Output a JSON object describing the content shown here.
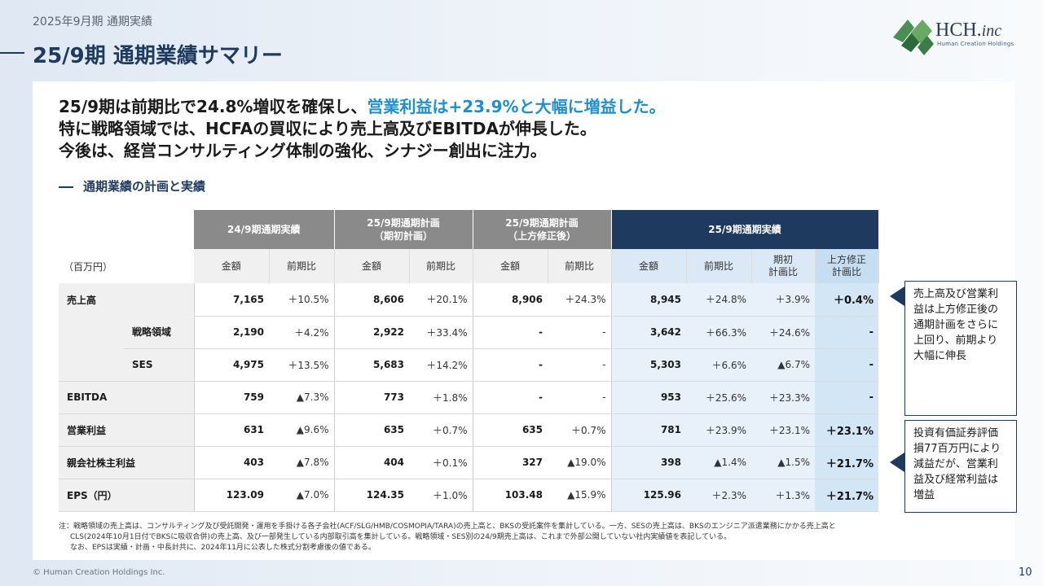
{
  "header": {
    "kicker": "2025年9月期 通期実績",
    "title": "25/9期 通期業績サマリー",
    "logo_main": "HCH.",
    "logo_italic": "inc",
    "logo_sub": "Human Creation Holdings"
  },
  "lead": {
    "line1a": "25/9期は前期比で24.8%増収を確保し、",
    "line1b": "営業利益は+23.9%と大幅に増益した。",
    "line2": "特に戦略領域では、HCFAの買収により売上高及びEBITDAが伸長した。",
    "line3": "今後は、経営コンサルティング体制の強化、シナジー創出に注力。"
  },
  "section_title": "通期業績の計画と実績",
  "table": {
    "group_headers": [
      "24/9期通期実績",
      "25/9期通期計画\n（期初計画）",
      "25/9期通期計画\n（上方修正後）",
      "25/9期通期実績"
    ],
    "unit": "（百万円）",
    "sub_headers": [
      "金額",
      "前期比",
      "金額",
      "前期比",
      "金額",
      "前期比",
      "金額",
      "前期比",
      "期初\n計画比",
      "上方修正\n計画比"
    ],
    "rows": [
      {
        "label": "売上高",
        "sub": "",
        "v": [
          "7,165",
          "＋10.5%",
          "8,606",
          "＋20.1%",
          "8,906",
          "＋24.3%",
          "8,945",
          "＋24.8%",
          "＋3.9%",
          "＋0.4%"
        ]
      },
      {
        "label": "",
        "sub": "戦略領域",
        "v": [
          "2,190",
          "＋4.2%",
          "2,922",
          "＋33.4%",
          "-",
          "-",
          "3,642",
          "＋66.3%",
          "＋24.6%",
          "-"
        ]
      },
      {
        "label": "",
        "sub": "SES",
        "v": [
          "4,975",
          "＋13.5%",
          "5,683",
          "＋14.2%",
          "-",
          "-",
          "5,303",
          "＋6.6%",
          "▲6.7%",
          "-"
        ]
      },
      {
        "label": "EBITDA",
        "sub": "",
        "v": [
          "759",
          "▲7.3%",
          "773",
          "＋1.8%",
          "-",
          "-",
          "953",
          "＋25.6%",
          "＋23.3%",
          "-"
        ]
      },
      {
        "label": "営業利益",
        "sub": "",
        "v": [
          "631",
          "▲9.6%",
          "635",
          "＋0.7%",
          "635",
          "＋0.7%",
          "781",
          "＋23.9%",
          "＋23.1%",
          "＋23.1%"
        ]
      },
      {
        "label": "親会社株主利益",
        "sub": "",
        "v": [
          "403",
          "▲7.8%",
          "404",
          "＋0.1%",
          "327",
          "▲19.0%",
          "398",
          "▲1.4%",
          "▲1.5%",
          "＋21.7%"
        ]
      },
      {
        "label": "EPS（円）",
        "sub": "",
        "v": [
          "123.09",
          "▲7.0%",
          "124.35",
          "＋1.0%",
          "103.48",
          "▲15.9%",
          "125.96",
          "＋2.3%",
          "＋1.3%",
          "＋21.7%"
        ]
      }
    ]
  },
  "callouts": [
    "売上高及び営業利益は上方修正後の通期計画をさらに上回り、前期より大幅に伸長",
    "投資有価証券評価損77百万円により減益だが、営業利益及び経常利益は増益"
  ],
  "notes": [
    "注：戦略領域の売上高は、コンサルティング及び受託開発・運用を手掛ける各子会社(ACF/SLG/HMB/COSMOPIA/TARA)の売上高と、BKSの受託案件を集計している。一方、SESの売上高は、BKSのエンジニア派遣業務にかかる売上高と",
    "CLS(2024年10月1日付でBKSに吸収合併)の売上高、及び一部発生している内部取引高を集計している。戦略領域・SES別の24/9期売上高は、これまで外部公開していない社内実績値を表記している。",
    "なお、EPSは実績・計画・中長計共に、2024年11月に公表した株式分割考慮後の値である。"
  ],
  "footer": {
    "copyright": "© Human Creation Holdings Inc.",
    "page": "10"
  }
}
